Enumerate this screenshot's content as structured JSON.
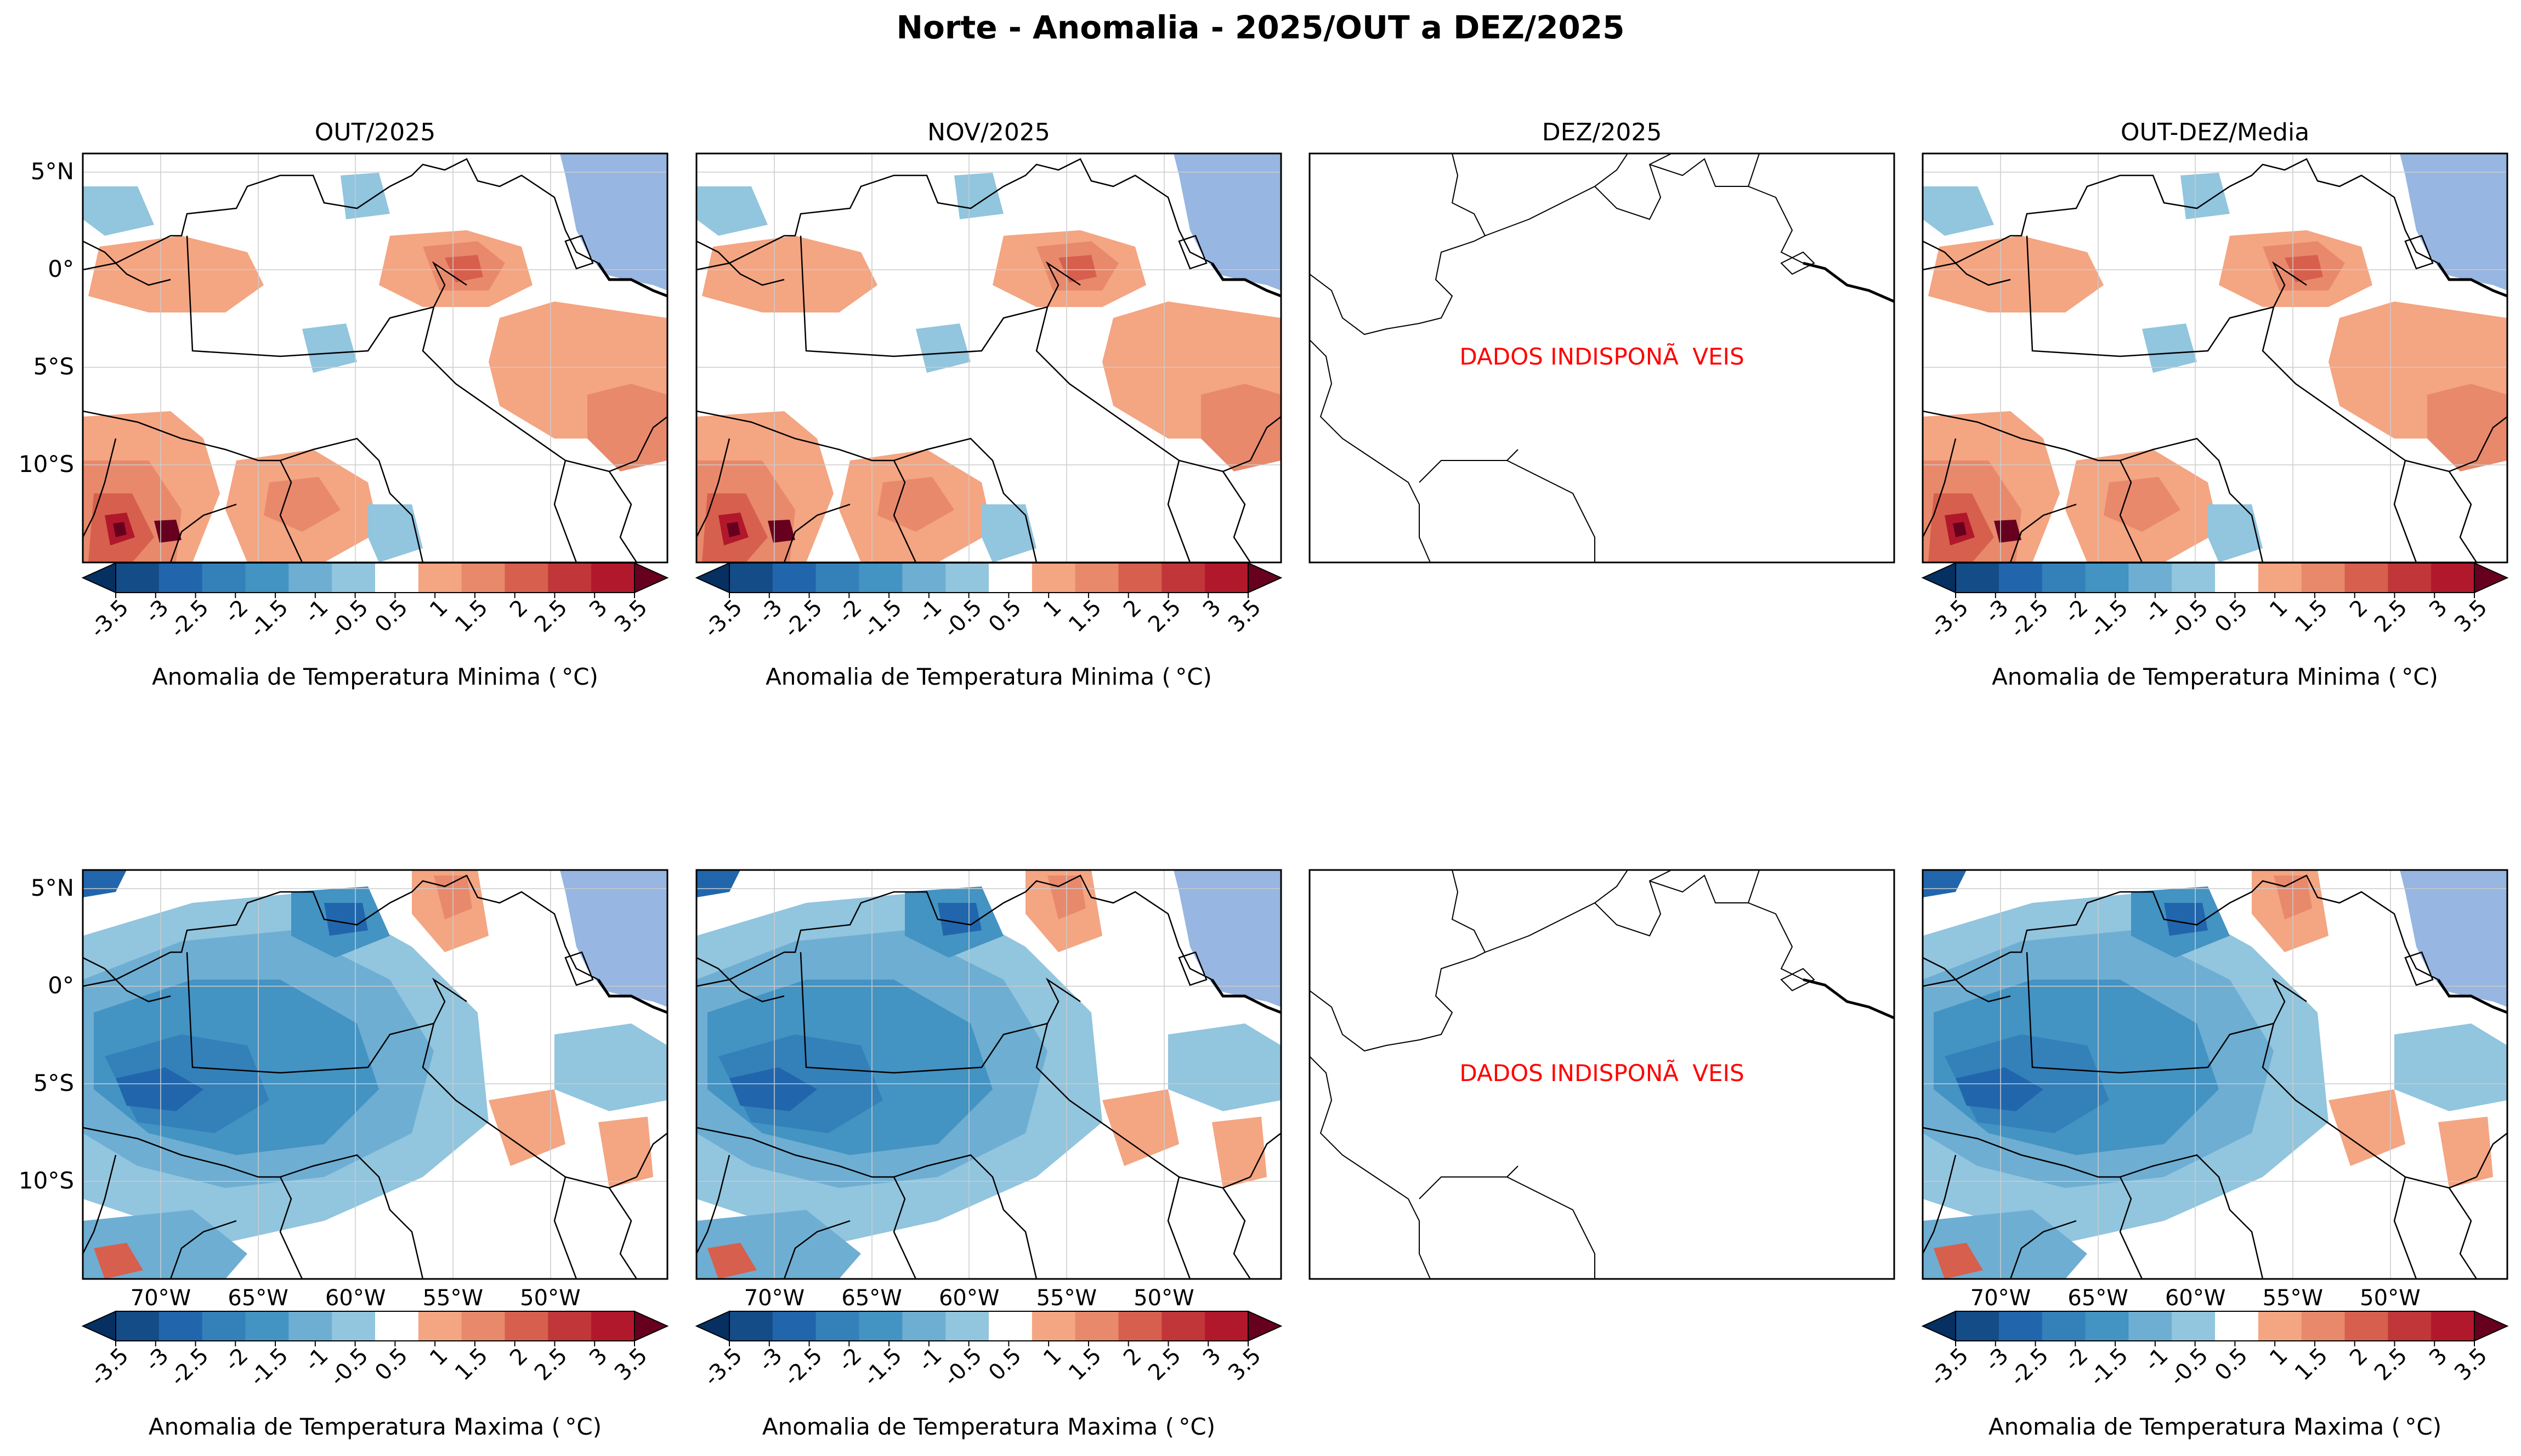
{
  "title": "Norte - Anomalia - 2025/OUT a DEZ/2025",
  "columns": [
    "OUT/2025",
    "NOV/2025",
    "DEZ/2025",
    "OUT-DEZ/Media"
  ],
  "rows": [
    {
      "variable": "Temperatura Minima",
      "colorbar_label": "Anomalia de Temperatura Minima ($^\\circ$C)"
    },
    {
      "variable": "Temperatura Maxima",
      "colorbar_label": "Anomalia de Temperatura Maxima ($^\\circ$C)"
    }
  ],
  "colorbar_label_min": "Anomalia de Temperatura Minima ( $^\\circ$C)",
  "colorbar_label_max": "Anomalia de Temperatura Maxima ( $^\\circ$C)",
  "cb_min_display": "Anomalia de Temperatura Minima ( °C)",
  "cb_max_display": "Anomalia de Temperatura Maxima ( °C)",
  "unavailable_text": "DADOS INDISPONÃVEIS",
  "lat_labels": [
    "5°N",
    "0°",
    "5°S",
    "10°S"
  ],
  "lon_labels": [
    "70°W",
    "65°W",
    "60°W",
    "55°W",
    "50°W"
  ],
  "colorbar_ticks": [
    "-3.5",
    "-3",
    "-2.5",
    "-2",
    "-1.5",
    "-1",
    "-0.5",
    "0.5",
    "1",
    "1.5",
    "2",
    "2.5",
    "3",
    "3.5"
  ],
  "colorbar_colors": [
    "#053061",
    "#134c87",
    "#2166ac",
    "#3480b9",
    "#4393c3",
    "#6eaed2",
    "#92c5de",
    "#ffffff",
    "#f4a582",
    "#e8896c",
    "#d6604d",
    "#c13639",
    "#b2182b",
    "#67001f"
  ],
  "ocean_color": "#97b6e1",
  "map_data": {
    "extent": {
      "lon": [
        -74,
        -44
      ],
      "lat": [
        -15,
        6
      ]
    },
    "panels_available": {
      "OUT/2025": true,
      "NOV/2025": true,
      "DEZ/2025": false,
      "OUT-DEZ/Media": true
    },
    "color_scale": {
      "min": -3.5,
      "max": 3.5,
      "step": 0.5,
      "extend": "both"
    }
  }
}
